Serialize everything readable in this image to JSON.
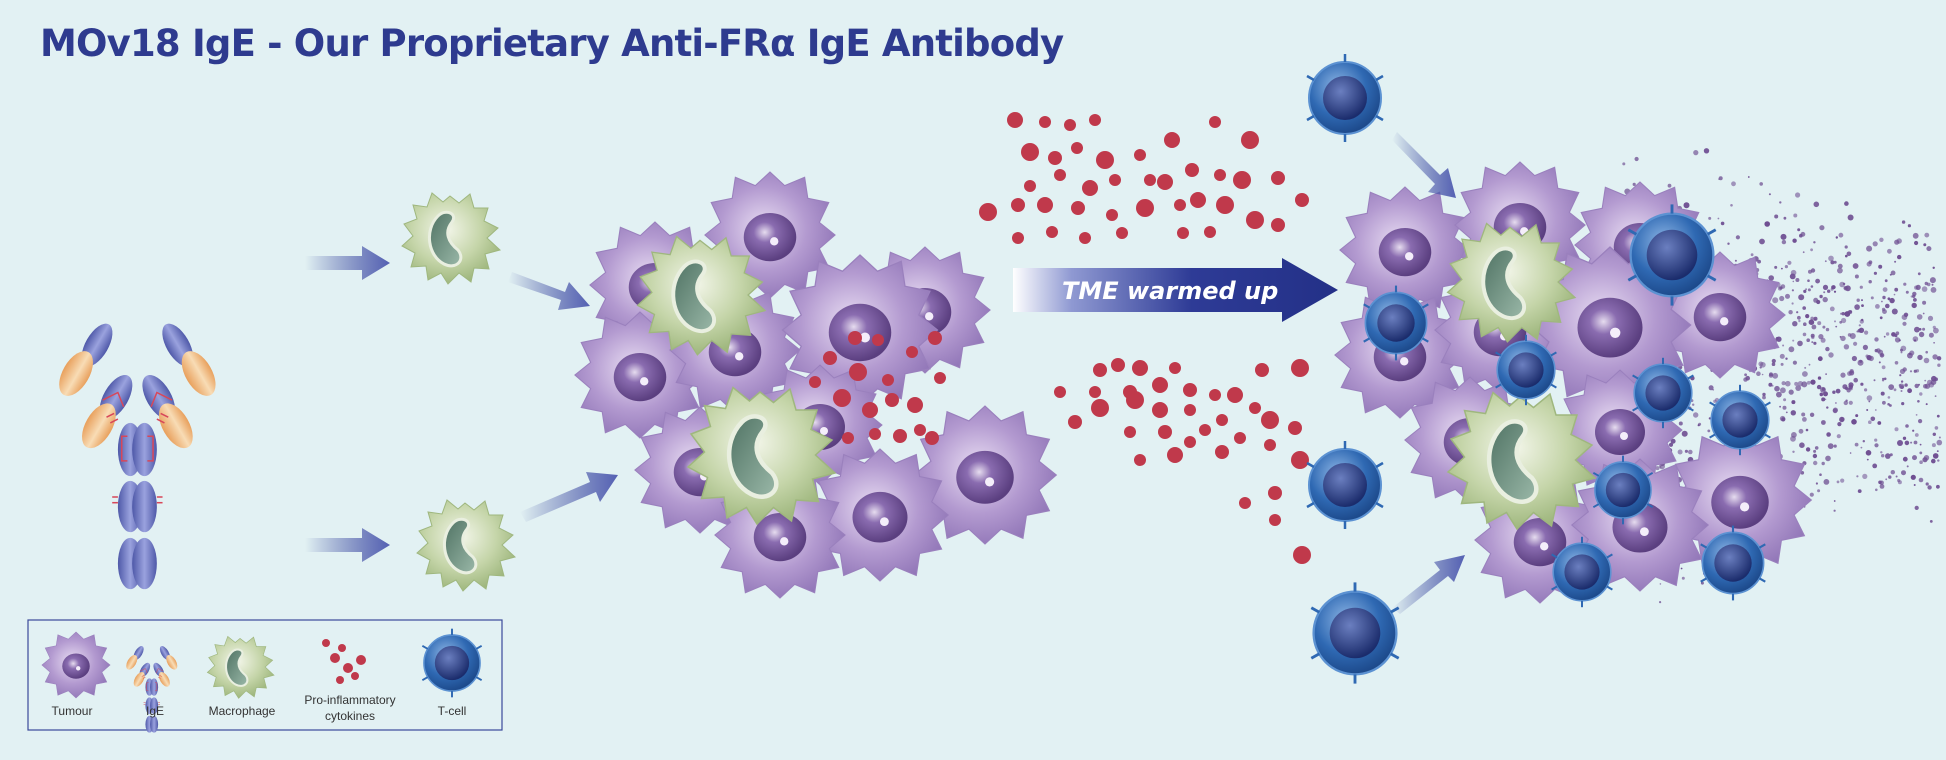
{
  "title": "MOv18 IgE - Our Proprietary Anti-FRα IgE Antibody",
  "arrow_label": "TME warmed up",
  "legend": {
    "tumour": "Tumour",
    "ige": "IgE",
    "macrophage": "Macrophage",
    "cytokines_line1": "Pro-inflammatory",
    "cytokines_line2": "cytokines",
    "tcell": "T-cell"
  },
  "colors": {
    "title": "#2e3b8f",
    "background": "#e2f1f3",
    "tumour": "#a98cc4",
    "tumour_nucleus": "#6f4f92",
    "macrophage": "#b9cc9a",
    "macrophage_nucleus": "#5f7f6d",
    "cytokine": "#c0394b",
    "tcell": "#2f69b3",
    "tcell_nucleus": "#1e3a78",
    "ige_heavy": "#6e78c4",
    "ige_light": "#efb77a",
    "arrow": "#2d3c95"
  }
}
